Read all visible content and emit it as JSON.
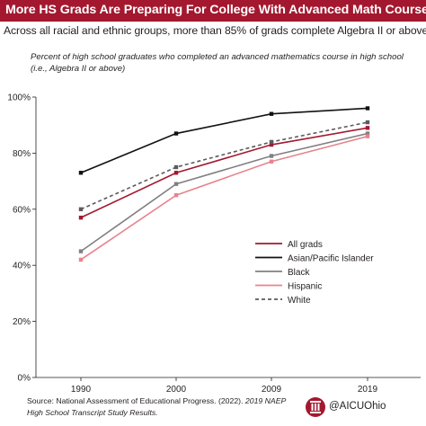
{
  "title": "More HS Grads Are Preparing For College With Advanced Math Courses",
  "subtitle": "Across all racial and ethnic groups, more than 85% of grads complete Algebra II or above",
  "description": "Percent of high school graduates who completed an advanced mathematics course in high school (i.e., Algebra II or above)",
  "source": {
    "prefix": "Source: National Assessment of Educational Progress. (2022). ",
    "italic": "2019 NAEP High School Transcript Study Results."
  },
  "brand": {
    "handle": "@AICUOhio",
    "color": "#a3182f"
  },
  "chart_data": {
    "type": "line",
    "x": [
      "1990",
      "2000",
      "2009",
      "2019"
    ],
    "y_ticks": [
      "0%",
      "20%",
      "40%",
      "60%",
      "80%",
      "100%"
    ],
    "ylim": [
      0,
      100
    ],
    "grid": false,
    "legend_position": "right-middle",
    "series": [
      {
        "name": "All grads",
        "values": [
          57,
          73,
          83,
          89
        ],
        "color": "#a3182f",
        "dashed": false
      },
      {
        "name": "Asian/Pacific Islander",
        "values": [
          73,
          87,
          94,
          96
        ],
        "color": "#111111",
        "dashed": false
      },
      {
        "name": "Black",
        "values": [
          45,
          69,
          79,
          87
        ],
        "color": "#808080",
        "dashed": false
      },
      {
        "name": "Hispanic",
        "values": [
          42,
          65,
          77,
          86
        ],
        "color": "#e8838d",
        "dashed": false
      },
      {
        "name": "White",
        "values": [
          60,
          75,
          84,
          91
        ],
        "color": "#5b5b5b",
        "dashed": true
      }
    ]
  }
}
